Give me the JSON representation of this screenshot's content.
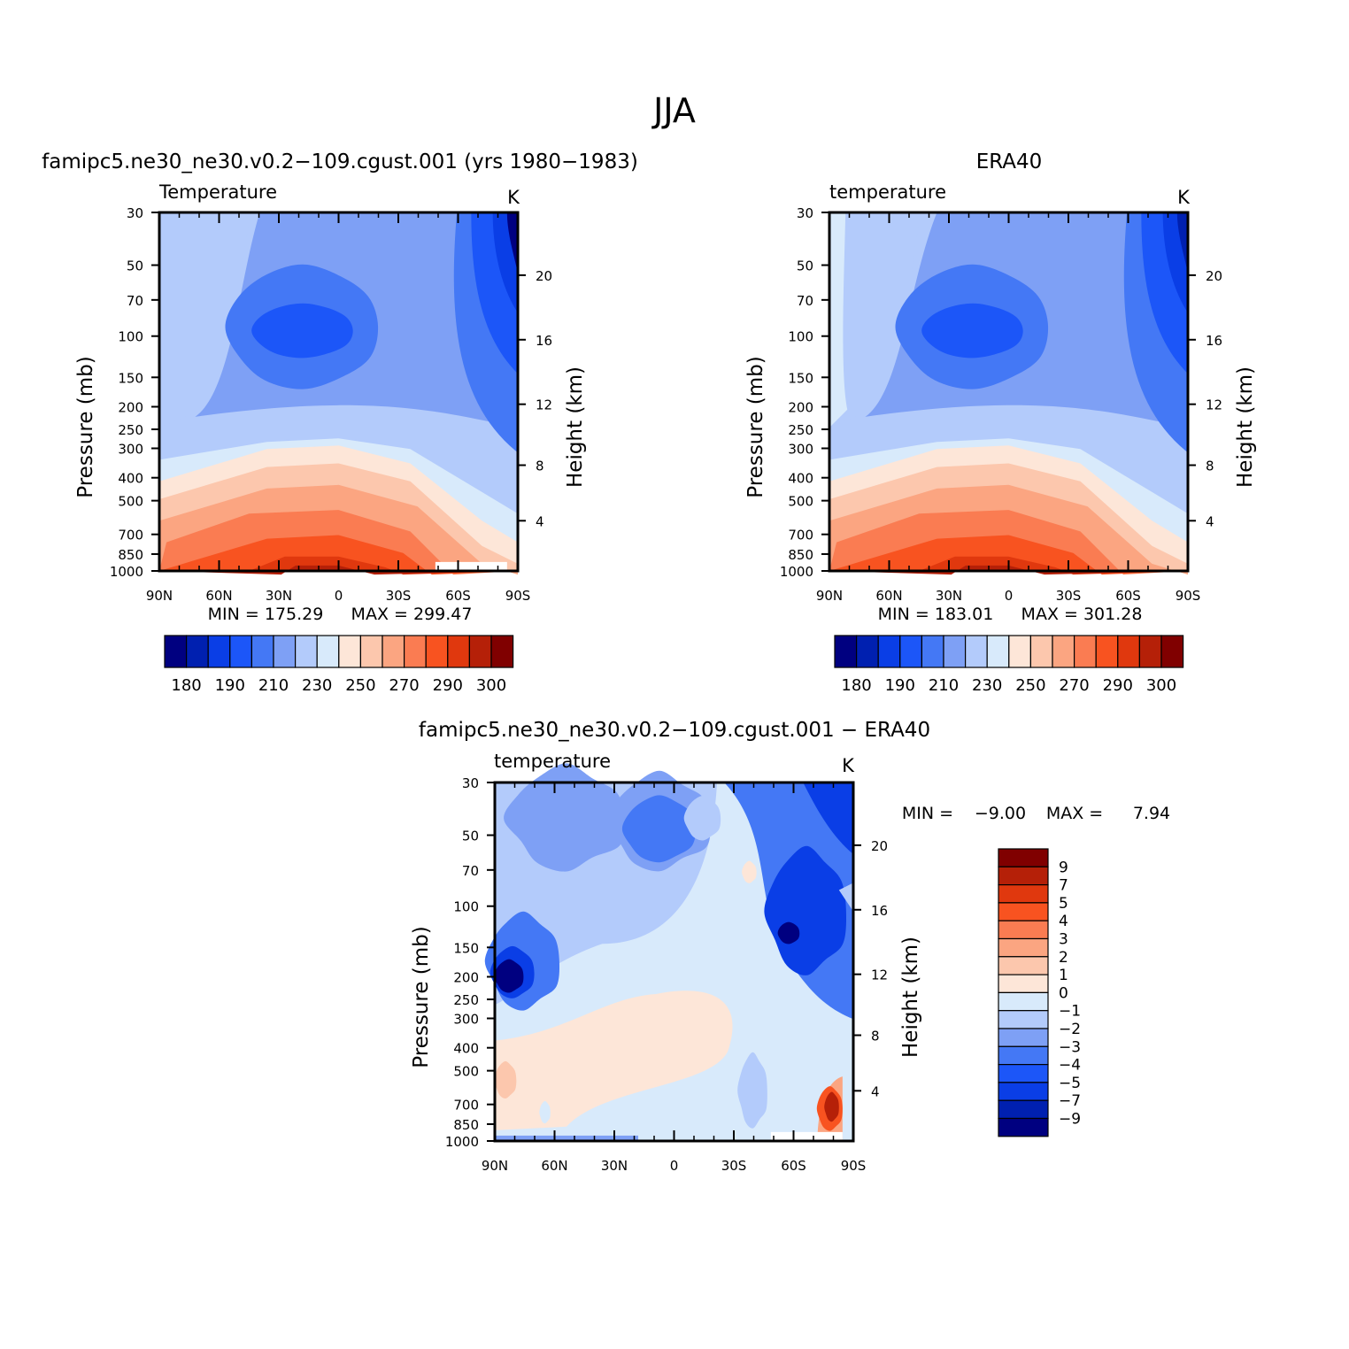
{
  "page_title": "JJA",
  "colors": {
    "temp_palette": [
      "#000080",
      "#0020b0",
      "#0a3ee6",
      "#1c56f8",
      "#4478f5",
      "#7ea0f5",
      "#b3cbfb",
      "#d8eafb",
      "#fde6d8",
      "#fcc7ad",
      "#fba581",
      "#fa7c52",
      "#f85320",
      "#e0380e",
      "#b52008",
      "#800000"
    ],
    "diff_palette": [
      "#000080",
      "#0020b0",
      "#0a3ee6",
      "#1c56f8",
      "#4478f5",
      "#7ea0f5",
      "#b3cbfb",
      "#d8eafb",
      "#fde6d8",
      "#fcc7ad",
      "#fba581",
      "#fa7c52",
      "#f85320",
      "#e0380e",
      "#b52008",
      "#800000"
    ]
  },
  "axes": {
    "ylabel": "Pressure (mb)",
    "ylabel_right": "Height (km)",
    "pressure_ticks": [
      "30",
      "50",
      "70",
      "100",
      "150",
      "200",
      "250",
      "300",
      "400",
      "500",
      "700",
      "850",
      "1000"
    ],
    "height_ticks": [
      "20",
      "16",
      "12",
      "8",
      "4"
    ],
    "lat_ticks": [
      "90N",
      "60N",
      "30N",
      "0",
      "30S",
      "60S",
      "90S"
    ]
  },
  "chart_data": [
    {
      "type": "heatmap",
      "title": "famipc5.ne30_ne30.v0.2−109.cgust.001 (yrs 1980−1983)",
      "variable": "Temperature",
      "units": "K",
      "min_label": "MIN = 175.29",
      "max_label": "MAX = 299.47",
      "xlabel": "",
      "ylabel": "Pressure (mb)",
      "ylabel_right": "Height (km)",
      "colorbar_labels": [
        "180",
        "190",
        "210",
        "230",
        "250",
        "270",
        "290",
        "300"
      ],
      "levels_bounds": [
        175,
        180,
        185,
        190,
        200,
        210,
        220,
        230,
        240,
        250,
        260,
        270,
        280,
        290,
        295,
        300
      ],
      "latitude_range": [
        90,
        -90
      ],
      "pressure_range": [
        30,
        1000
      ],
      "grid": false
    },
    {
      "type": "heatmap",
      "title": "ERA40",
      "variable": "temperature",
      "units": "K",
      "min_label": "MIN = 183.01",
      "max_label": "MAX = 301.28",
      "colorbar_labels": [
        "180",
        "190",
        "210",
        "230",
        "250",
        "270",
        "290",
        "300"
      ],
      "latitude_range": [
        90,
        -90
      ],
      "pressure_range": [
        30,
        1000
      ],
      "grid": false
    },
    {
      "type": "heatmap",
      "title": "famipc5.ne30_ne30.v0.2−109.cgust.001 − ERA40",
      "variable": "temperature",
      "units": "K",
      "min_label": "MIN =",
      "min_value": "−9.00",
      "max_label": "MAX =",
      "max_value": "7.94",
      "colorbar_labels": [
        "9",
        "7",
        "5",
        "4",
        "3",
        "2",
        "1",
        "0",
        "−1",
        "−2",
        "−3",
        "−4",
        "−5",
        "−7",
        "−9"
      ],
      "latitude_range": [
        90,
        -90
      ],
      "pressure_range": [
        30,
        1000
      ],
      "grid": false
    }
  ]
}
